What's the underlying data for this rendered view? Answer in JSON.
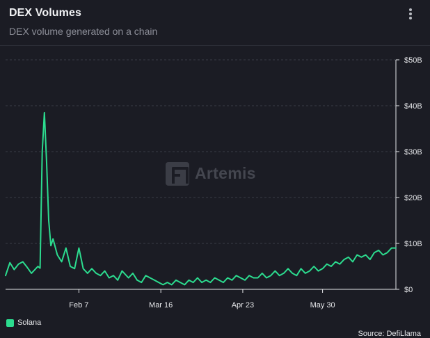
{
  "header": {
    "title": "DEX Volumes",
    "subtitle": "DEX volume generated on a chain"
  },
  "menu_icon": "more-vertical-icon",
  "watermark": {
    "text": "Artemis",
    "icon": "artemis-logo-icon"
  },
  "footer": {
    "source": "Source: DefiLlama"
  },
  "colors": {
    "background": "#1b1c24",
    "series": "#2cdc8f",
    "grid": "#3a3c46",
    "axis_text": "#e6e7ea"
  },
  "chart_data": {
    "type": "line",
    "title": "DEX Volumes",
    "subtitle": "DEX volume generated on a chain",
    "x_start": "Jan 4",
    "x_end": "Jul 3",
    "x_ticks": [
      "Feb 7",
      "Mar 16",
      "Apr 23",
      "May 30"
    ],
    "y_ticks": [
      "$0",
      "$10B",
      "$20B",
      "$30B",
      "$40B",
      "$50B"
    ],
    "ylim": [
      0,
      50
    ],
    "yunit": "B USD",
    "grid": true,
    "legend_position": "bottom-left",
    "series": [
      {
        "name": "Solana",
        "color": "#2cdc8f",
        "x": [
          "Jan 4",
          "Jan 6",
          "Jan 8",
          "Jan 10",
          "Jan 12",
          "Jan 14",
          "Jan 16",
          "Jan 18",
          "Jan 19",
          "Jan 20",
          "Jan 21",
          "Jan 22",
          "Jan 23",
          "Jan 24",
          "Jan 25",
          "Jan 26",
          "Jan 28",
          "Jan 30",
          "Feb 1",
          "Feb 3",
          "Feb 5",
          "Feb 7",
          "Feb 9",
          "Feb 11",
          "Feb 13",
          "Feb 15",
          "Feb 17",
          "Feb 19",
          "Feb 21",
          "Feb 23",
          "Feb 25",
          "Feb 27",
          "Mar 1",
          "Mar 3",
          "Mar 5",
          "Mar 7",
          "Mar 9",
          "Mar 11",
          "Mar 13",
          "Mar 15",
          "Mar 17",
          "Mar 19",
          "Mar 21",
          "Mar 23",
          "Mar 25",
          "Mar 27",
          "Mar 29",
          "Mar 31",
          "Apr 2",
          "Apr 4",
          "Apr 6",
          "Apr 8",
          "Apr 10",
          "Apr 12",
          "Apr 14",
          "Apr 16",
          "Apr 18",
          "Apr 20",
          "Apr 22",
          "Apr 24",
          "Apr 26",
          "Apr 28",
          "Apr 30",
          "May 2",
          "May 4",
          "May 6",
          "May 8",
          "May 10",
          "May 12",
          "May 14",
          "May 16",
          "May 18",
          "May 20",
          "May 22",
          "May 24",
          "May 26",
          "May 28",
          "May 30",
          "Jun 1",
          "Jun 3",
          "Jun 5",
          "Jun 7",
          "Jun 9",
          "Jun 11",
          "Jun 13",
          "Jun 15",
          "Jun 17",
          "Jun 19",
          "Jun 21",
          "Jun 23",
          "Jun 25",
          "Jun 27",
          "Jun 29",
          "Jul 1",
          "Jul 3"
        ],
        "values": [
          3,
          5.8,
          4.3,
          5.5,
          6,
          4.8,
          3.5,
          4.5,
          5,
          4.6,
          30,
          38.5,
          28,
          15,
          9.5,
          11,
          7.5,
          6,
          9,
          5,
          4.5,
          9,
          4.5,
          3.5,
          4.5,
          3.5,
          3,
          4,
          2.5,
          3,
          2,
          4,
          2.5,
          3.5,
          2,
          1.5,
          3,
          2.5,
          2,
          1.5,
          1,
          1.5,
          1,
          2,
          1.5,
          1,
          2,
          1.5,
          2.5,
          1.5,
          2,
          1.5,
          2.5,
          2,
          1.5,
          2.5,
          2,
          3,
          2.5,
          2,
          3,
          2.5,
          2.5,
          3.5,
          2.5,
          3,
          4,
          3,
          3.5,
          4.5,
          3.5,
          3,
          4.5,
          3.5,
          4,
          5,
          4,
          4.5,
          5.5,
          5,
          6,
          5.5,
          6.5,
          7,
          6,
          7.5,
          7,
          7.5,
          6.5,
          8,
          8.5,
          7.5,
          8,
          9,
          9
        ]
      }
    ]
  }
}
